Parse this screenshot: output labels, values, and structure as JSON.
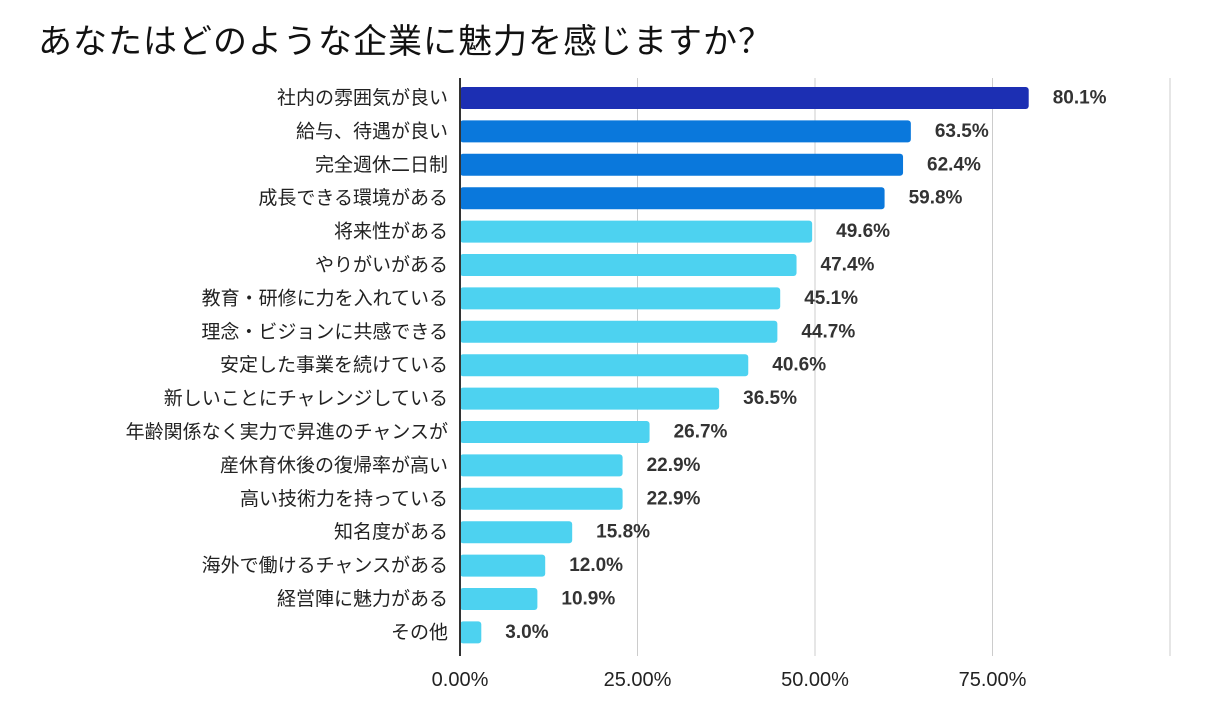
{
  "chart_data": {
    "type": "bar",
    "orientation": "horizontal",
    "title": "あなたはどのような企業に魅力を感じますか？",
    "xlabel": "",
    "ylabel": "",
    "xlim": [
      0,
      100
    ],
    "grid": true,
    "categories": [
      "社内の雰囲気が良い",
      "給与、待遇が良い",
      "完全週休二日制",
      "成長できる環境がある",
      "将来性がある",
      "やりがいがある",
      "教育・研修に力を入れている",
      "理念・ビジョンに共感できる",
      "安定した事業を続けている",
      "新しいことにチャレンジしている",
      "年齢関係なく実力で昇進のチャンスが",
      "産休育休後の復帰率が高い",
      "高い技術力を持っている",
      "知名度がある",
      "海外で働けるチャンスがある",
      "経営陣に魅力がある",
      "その他"
    ],
    "values": [
      80.1,
      63.5,
      62.4,
      59.8,
      49.6,
      47.4,
      45.1,
      44.7,
      40.6,
      36.5,
      26.7,
      22.9,
      22.9,
      15.8,
      12.0,
      10.9,
      3.0
    ],
    "value_labels": [
      "80.1%",
      "63.5%",
      "62.4%",
      "59.8%",
      "49.6%",
      "47.4%",
      "45.1%",
      "44.7%",
      "40.6%",
      "36.5%",
      "26.7%",
      "22.9%",
      "22.9%",
      "15.8%",
      "12.0%",
      "10.9%",
      "3.0%"
    ],
    "bar_colors": [
      "#1c2fb3",
      "#0a78dc",
      "#0a78dc",
      "#0a78dc",
      "#4dd2f0",
      "#4dd2f0",
      "#4dd2f0",
      "#4dd2f0",
      "#4dd2f0",
      "#4dd2f0",
      "#4dd2f0",
      "#4dd2f0",
      "#4dd2f0",
      "#4dd2f0",
      "#4dd2f0",
      "#4dd2f0",
      "#4dd2f0"
    ],
    "x_ticks": [
      0,
      25,
      50,
      75
    ],
    "x_tick_labels": [
      "0.00%",
      "25.00%",
      "50.00%",
      "75.00%"
    ]
  }
}
